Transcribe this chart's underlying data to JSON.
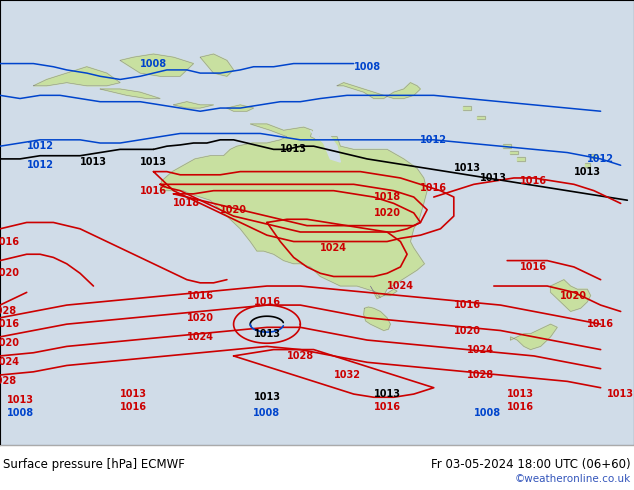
{
  "title_left": "Surface pressure [hPa] ECMWF",
  "title_right": "Fr 03-05-2024 18:00 UTC (06+60)",
  "watermark": "©weatheronline.co.uk",
  "bg_color": "#d0dce8",
  "land_color": "#c8e0a0",
  "land_border_color": "#909090",
  "fig_width": 6.34,
  "fig_height": 4.9,
  "dpi": 100,
  "bottom_bar_color": "#f0f0f0",
  "title_fontsize": 8.5,
  "watermark_color": "#3355bb",
  "red": "#cc0000",
  "blue": "#0044cc",
  "black": "#000000",
  "label_fontsize": 7.0,
  "lon_min": 90,
  "lon_max": 185,
  "lat_min": -62,
  "lat_max": 8
}
